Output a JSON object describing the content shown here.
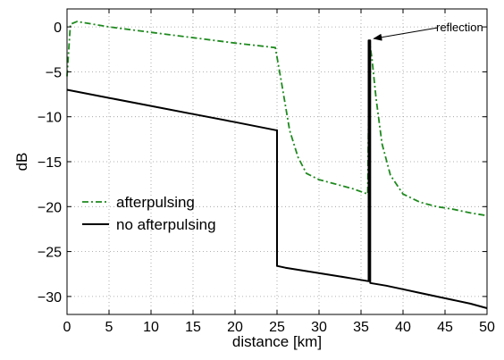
{
  "chart_data": {
    "type": "line",
    "title": "",
    "xlabel": "distance [km]",
    "ylabel": "dB",
    "xlim": [
      0,
      50
    ],
    "ylim": [
      -32,
      2
    ],
    "xticks": [
      0,
      5,
      10,
      15,
      20,
      25,
      30,
      35,
      40,
      45,
      50
    ],
    "yticks": [
      0,
      -5,
      -10,
      -15,
      -20,
      -25,
      -30
    ],
    "grid": true,
    "legend_position": "left",
    "series": [
      {
        "name": "afterpulsing",
        "color": "#1f8a1f",
        "style": "dash-dot",
        "x": [
          0,
          0.4,
          1.2,
          5,
          10,
          15,
          20,
          24.8,
          25.5,
          26.5,
          27.5,
          28.5,
          30,
          32,
          34,
          35.8,
          36.0,
          36.3,
          36.8,
          37.5,
          38.5,
          40,
          42,
          44,
          46,
          48,
          50
        ],
        "y": [
          -5.5,
          0.3,
          0.6,
          0.0,
          -0.6,
          -1.2,
          -1.8,
          -2.3,
          -6.0,
          -11.5,
          -14.5,
          -16.3,
          -17.0,
          -17.5,
          -18.0,
          -18.6,
          -1.6,
          -3.5,
          -8.0,
          -13.0,
          -16.5,
          -18.6,
          -19.5,
          -20.0,
          -20.3,
          -20.7,
          -21.0
        ]
      },
      {
        "name": "no afterpulsing",
        "color": "#000000",
        "style": "solid",
        "x": [
          0,
          5,
          10,
          15,
          20,
          24.9,
          25.0,
          25.0,
          26,
          28,
          30,
          32,
          34,
          35.9,
          35.9,
          36.0,
          36.1,
          36.1,
          38,
          40,
          42,
          44,
          46,
          48,
          50
        ],
        "y": [
          -7.0,
          -7.9,
          -8.8,
          -9.7,
          -10.6,
          -11.5,
          -11.5,
          -26.6,
          -26.8,
          -27.1,
          -27.4,
          -27.7,
          -28.0,
          -28.3,
          -1.5,
          -1.5,
          -1.5,
          -28.5,
          -28.8,
          -29.2,
          -29.6,
          -30.0,
          -30.4,
          -30.8,
          -31.3
        ]
      }
    ],
    "annotations": [
      {
        "text": "reflection",
        "x": 36.2,
        "y": -1.6
      }
    ]
  },
  "labels": {
    "xlabel": "distance [km]",
    "ylabel": "dB",
    "annotation": "reflection",
    "legend_afterpulsing": "afterpulsing",
    "legend_no_afterpulsing": "no afterpulsing"
  }
}
